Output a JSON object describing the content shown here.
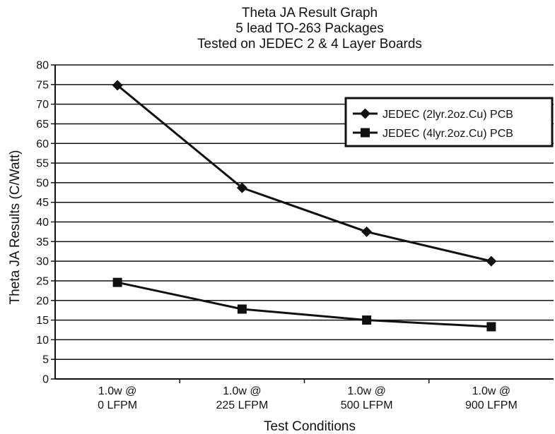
{
  "chart_data": {
    "type": "line",
    "title": [
      "Theta JA Result Graph",
      "5 lead TO-263 Packages",
      "Tested on JEDEC 2 & 4 Layer Boards"
    ],
    "xlabel": "Test Conditions",
    "ylabel": "Theta JA Results (C/Watt)",
    "categories": [
      [
        "1.0w @",
        "0 LFPM"
      ],
      [
        "1.0w @",
        "225 LFPM"
      ],
      [
        "1.0w @",
        "500 LFPM"
      ],
      [
        "1.0w @",
        "900 LFPM"
      ]
    ],
    "ylim": [
      0,
      80
    ],
    "ytick_step": 5,
    "grid": true,
    "legend_position": "top-right",
    "series": [
      {
        "name": "JEDEC (2lyr.2oz.Cu) PCB",
        "marker": "diamond",
        "values": [
          74.8,
          48.7,
          37.5,
          30.0
        ]
      },
      {
        "name": "JEDEC (4lyr.2oz.Cu) PCB",
        "marker": "square",
        "values": [
          24.6,
          17.8,
          15.0,
          13.3
        ]
      }
    ],
    "line_color": "#111111"
  }
}
